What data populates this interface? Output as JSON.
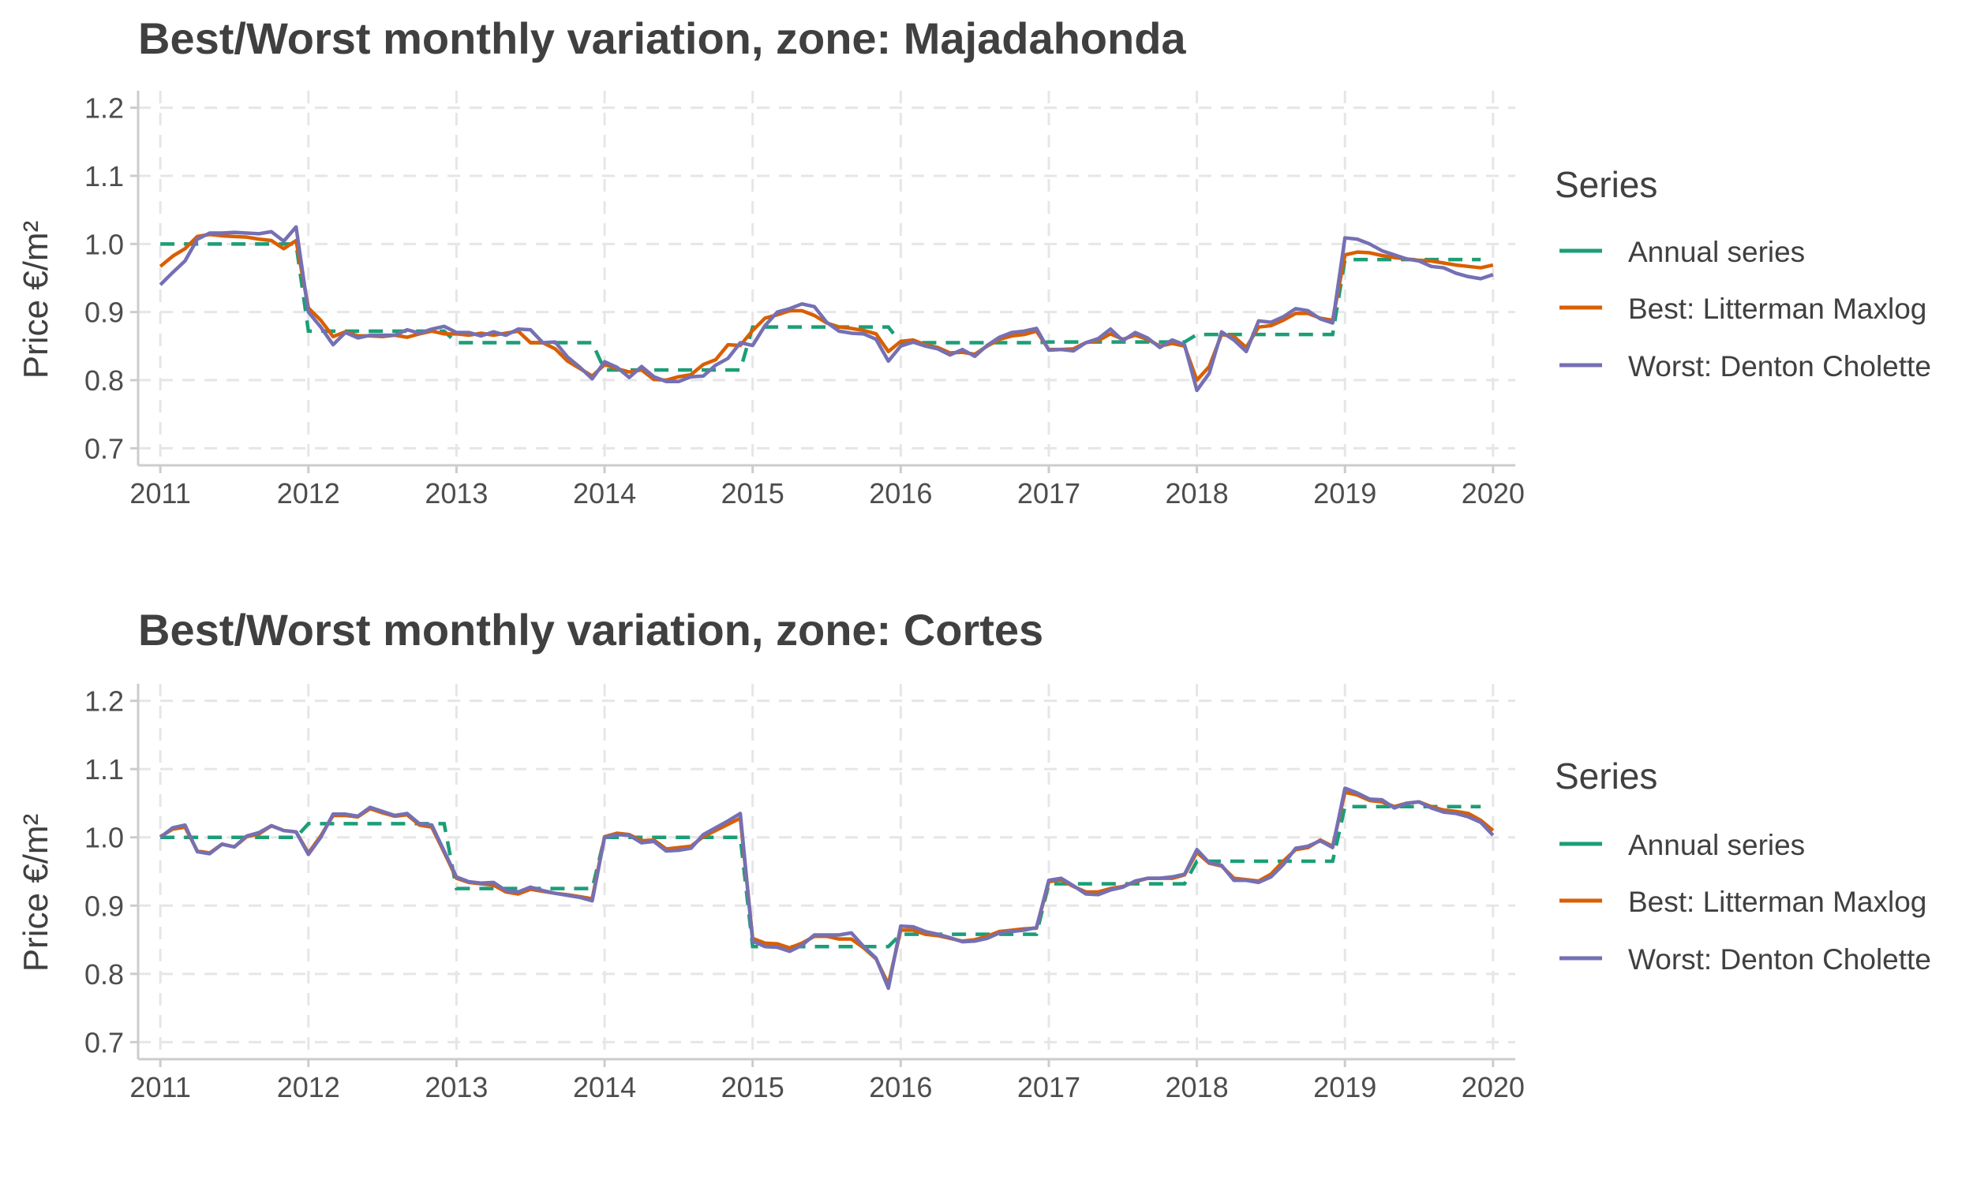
{
  "colors": {
    "annual": "#1b9e77",
    "best": "#d95f02",
    "worst": "#7570b3"
  },
  "chart_data": [
    {
      "type": "line",
      "title": "Best/Worst monthly variation, zone: Majadahonda",
      "xlabel": "",
      "ylabel": "Price €/m²",
      "xlim": [
        2010.85,
        2020.15
      ],
      "ylim": [
        0.675,
        1.225
      ],
      "x_ticks": [
        "2011",
        "2012",
        "2013",
        "2014",
        "2015",
        "2016",
        "2017",
        "2018",
        "2019",
        "2020"
      ],
      "y_ticks": [
        "0.7",
        "0.8",
        "0.9",
        "1.0",
        "1.1",
        "1.2"
      ],
      "grid": true,
      "legend": {
        "title": "Series",
        "position": "right",
        "entries": [
          "Annual series",
          "Best: Litterman Maxlog",
          "Worst: Denton Cholette"
        ]
      },
      "x_start": 2011.0,
      "x_step_months": 1,
      "annual": [
        1.0,
        0.872,
        0.855,
        0.815,
        0.878,
        0.855,
        0.856,
        0.867,
        0.977
      ],
      "best": [
        0.967,
        0.982,
        0.993,
        1.011,
        1.014,
        1.012,
        1.011,
        1.01,
        1.007,
        1.005,
        0.993,
        1.005,
        0.906,
        0.888,
        0.864,
        0.871,
        0.865,
        0.865,
        0.864,
        0.866,
        0.863,
        0.868,
        0.872,
        0.868,
        0.868,
        0.866,
        0.869,
        0.866,
        0.869,
        0.872,
        0.855,
        0.855,
        0.846,
        0.828,
        0.817,
        0.806,
        0.823,
        0.817,
        0.812,
        0.815,
        0.801,
        0.8,
        0.805,
        0.808,
        0.823,
        0.83,
        0.852,
        0.851,
        0.873,
        0.891,
        0.896,
        0.902,
        0.902,
        0.895,
        0.884,
        0.878,
        0.876,
        0.873,
        0.868,
        0.842,
        0.857,
        0.859,
        0.852,
        0.848,
        0.84,
        0.841,
        0.838,
        0.85,
        0.86,
        0.865,
        0.867,
        0.872,
        0.845,
        0.845,
        0.846,
        0.855,
        0.858,
        0.868,
        0.86,
        0.866,
        0.86,
        0.85,
        0.854,
        0.85,
        0.8,
        0.82,
        0.867,
        0.864,
        0.848,
        0.878,
        0.88,
        0.888,
        0.898,
        0.898,
        0.891,
        0.888,
        0.984,
        0.988,
        0.987,
        0.983,
        0.98,
        0.978,
        0.976,
        0.975,
        0.972,
        0.969,
        0.967,
        0.965,
        0.969
      ],
      "worst": [
        0.94,
        0.958,
        0.975,
        1.007,
        1.016,
        1.016,
        1.017,
        1.016,
        1.015,
        1.018,
        1.004,
        1.025,
        0.9,
        0.878,
        0.852,
        0.87,
        0.862,
        0.866,
        0.866,
        0.866,
        0.874,
        0.869,
        0.875,
        0.879,
        0.87,
        0.87,
        0.865,
        0.871,
        0.866,
        0.875,
        0.874,
        0.855,
        0.856,
        0.834,
        0.819,
        0.802,
        0.827,
        0.819,
        0.804,
        0.82,
        0.805,
        0.798,
        0.798,
        0.805,
        0.806,
        0.822,
        0.832,
        0.855,
        0.851,
        0.88,
        0.9,
        0.905,
        0.912,
        0.908,
        0.885,
        0.872,
        0.869,
        0.868,
        0.86,
        0.828,
        0.85,
        0.856,
        0.85,
        0.846,
        0.837,
        0.845,
        0.835,
        0.851,
        0.863,
        0.87,
        0.872,
        0.876,
        0.844,
        0.845,
        0.843,
        0.855,
        0.861,
        0.875,
        0.858,
        0.87,
        0.862,
        0.848,
        0.859,
        0.852,
        0.785,
        0.81,
        0.871,
        0.859,
        0.842,
        0.887,
        0.885,
        0.893,
        0.905,
        0.902,
        0.89,
        0.884,
        1.009,
        1.007,
        1.0,
        0.99,
        0.984,
        0.978,
        0.975,
        0.967,
        0.965,
        0.957,
        0.952,
        0.949,
        0.955
      ]
    },
    {
      "type": "line",
      "title": "Best/Worst monthly variation, zone: Cortes",
      "xlabel": "",
      "ylabel": "Price €/m²",
      "xlim": [
        2010.85,
        2020.15
      ],
      "ylim": [
        0.675,
        1.225
      ],
      "x_ticks": [
        "2011",
        "2012",
        "2013",
        "2014",
        "2015",
        "2016",
        "2017",
        "2018",
        "2019",
        "2020"
      ],
      "y_ticks": [
        "0.7",
        "0.8",
        "0.9",
        "1.0",
        "1.1",
        "1.2"
      ],
      "grid": true,
      "legend": {
        "title": "Series",
        "position": "right",
        "entries": [
          "Annual series",
          "Best: Litterman Maxlog",
          "Worst: Denton Cholette"
        ]
      },
      "x_start": 2011.0,
      "x_step_months": 1,
      "annual": [
        1.0,
        1.02,
        0.925,
        1.0,
        0.84,
        0.858,
        0.932,
        0.965,
        1.045
      ],
      "best": [
        1.001,
        1.012,
        1.015,
        0.98,
        0.977,
        0.99,
        0.986,
        1.001,
        1.005,
        1.017,
        1.01,
        1.008,
        0.977,
        1.002,
        1.032,
        1.032,
        1.03,
        1.042,
        1.036,
        1.031,
        1.033,
        1.018,
        1.015,
        0.978,
        0.94,
        0.934,
        0.932,
        0.93,
        0.92,
        0.917,
        0.924,
        0.921,
        0.918,
        0.916,
        0.913,
        0.91,
        1.001,
        1.006,
        1.004,
        0.995,
        0.996,
        0.983,
        0.985,
        0.987,
        1.001,
        1.01,
        1.019,
        1.028,
        0.852,
        0.845,
        0.844,
        0.838,
        0.845,
        0.855,
        0.855,
        0.851,
        0.851,
        0.838,
        0.822,
        0.785,
        0.864,
        0.864,
        0.858,
        0.856,
        0.852,
        0.848,
        0.85,
        0.855,
        0.862,
        0.864,
        0.866,
        0.867,
        0.935,
        0.938,
        0.928,
        0.92,
        0.92,
        0.925,
        0.928,
        0.935,
        0.94,
        0.94,
        0.94,
        0.945,
        0.978,
        0.962,
        0.958,
        0.94,
        0.938,
        0.936,
        0.946,
        0.965,
        0.982,
        0.985,
        0.996,
        0.987,
        1.066,
        1.062,
        1.054,
        1.052,
        1.045,
        1.05,
        1.052,
        1.045,
        1.04,
        1.038,
        1.035,
        1.025,
        1.01
      ],
      "worst": [
        1.0,
        1.014,
        1.018,
        0.979,
        0.976,
        0.99,
        0.986,
        1.002,
        1.007,
        1.017,
        1.01,
        1.008,
        0.975,
        1.0,
        1.034,
        1.034,
        1.031,
        1.044,
        1.038,
        1.032,
        1.035,
        1.02,
        1.018,
        0.98,
        0.942,
        0.935,
        0.933,
        0.934,
        0.922,
        0.92,
        0.927,
        0.922,
        0.918,
        0.915,
        0.912,
        0.907,
        1.0,
        1.004,
        1.003,
        0.992,
        0.994,
        0.98,
        0.981,
        0.984,
        1.004,
        1.014,
        1.024,
        1.035,
        0.848,
        0.84,
        0.839,
        0.833,
        0.842,
        0.857,
        0.857,
        0.857,
        0.86,
        0.84,
        0.823,
        0.779,
        0.87,
        0.869,
        0.862,
        0.858,
        0.853,
        0.847,
        0.848,
        0.852,
        0.86,
        0.862,
        0.864,
        0.868,
        0.937,
        0.94,
        0.929,
        0.917,
        0.916,
        0.923,
        0.927,
        0.936,
        0.94,
        0.94,
        0.942,
        0.946,
        0.982,
        0.963,
        0.959,
        0.937,
        0.937,
        0.934,
        0.942,
        0.96,
        0.984,
        0.987,
        0.995,
        0.985,
        1.072,
        1.065,
        1.056,
        1.055,
        1.043,
        1.05,
        1.052,
        1.043,
        1.037,
        1.035,
        1.03,
        1.022,
        1.003
      ]
    }
  ]
}
